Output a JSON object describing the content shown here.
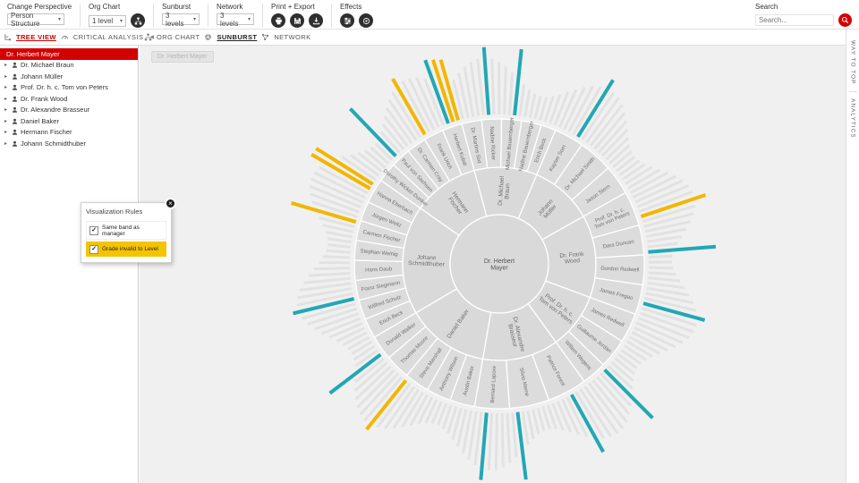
{
  "toolbar": {
    "perspective": {
      "label": "Change Perspective",
      "value": "Person Structure"
    },
    "org_chart": {
      "label": "Org Chart",
      "value": "1 level"
    },
    "sunburst": {
      "label": "Sunburst",
      "value": "3 levels"
    },
    "network": {
      "label": "Network",
      "value": "3 levels"
    },
    "print_export": {
      "label": "Print + Export"
    },
    "effects": {
      "label": "Effects"
    },
    "search": {
      "label": "Search",
      "placeholder": "Search..."
    }
  },
  "tabs": {
    "tree_view": "TREE VIEW",
    "critical_analysis": "CRITICAL ANALYSIS",
    "org_chart": "ORG CHART",
    "sunburst": "SUNBURST",
    "network": "NETWORK"
  },
  "tree": {
    "selected": "Dr. Herbert Mayer",
    "items": [
      "Dr. Michael Braun",
      "Johann Müller",
      "Prof. Dr. h. c. Tom von Peters",
      "Dr. Frank Wood",
      "Dr. Alexandre Brasseur",
      "Daniel Baker",
      "Hermann Fischer",
      "Johann Schmidthuber"
    ]
  },
  "main": {
    "root_button": "Dr. Herbert Mayer"
  },
  "rules_panel": {
    "title": "Visualization Rules",
    "options": [
      {
        "label": "Same band as manager",
        "checked": true,
        "highlighted": false
      },
      {
        "label": "Grade invalid to Level",
        "checked": true,
        "highlighted": true
      }
    ]
  },
  "side_strip": {
    "top": "WAY TO TOP",
    "bottom": "ANALYTICS"
  },
  "chart_data": {
    "type": "sunburst",
    "center": "Dr. Herbert Mayer",
    "start_angle": -105,
    "legend": "inner ring = direct reports, middle ring = their reports, outer spokes = individual employees; colored spokes mark rule matches",
    "palette": {
      "ring": "#d9d9d9",
      "ring2": "#dcdcdc",
      "leaf": "#e2e2e2",
      "teal": "#22a7b5",
      "yellow": "#f2b600",
      "label": "#6f6f6f",
      "center_label": "#555555",
      "stroke": "#ffffff"
    },
    "children": [
      {
        "name": "Dr. Michael Braun",
        "children": [
          {
            "name": "Dr. Martins Sixt",
            "leaves": 4
          },
          {
            "name": "Nadine Ricker",
            "leaves": 4
          },
          {
            "name": "Michael Bauernberger",
            "leaves": 4
          },
          {
            "name": "Nadine Bauernberger",
            "leaves": 4
          },
          {
            "name": "Erich Beck",
            "leaves": 3
          }
        ]
      },
      {
        "name": "Johann Müller",
        "children": [
          {
            "name": "Kayser Som",
            "leaves": 6
          },
          {
            "name": "Dr. Michael Smith",
            "leaves": 7
          },
          {
            "name": "Jason Stern",
            "leaves": 6
          }
        ]
      },
      {
        "name": "Dr. Frank Wood",
        "children": [
          {
            "name": "Prof. Dr. h. c. Tom von Peters",
            "leaves": 7
          },
          {
            "name": "Dara Duncan",
            "leaves": 6
          },
          {
            "name": "Gordon Redwell",
            "leaves": 6
          },
          {
            "name": "James Fregao",
            "leaves": 6
          }
        ]
      },
      {
        "name": "Prof. Dr. h. c. Tom von Peters",
        "children": [
          {
            "name": "James Redwell",
            "leaves": 6
          },
          {
            "name": "Guillaume Jordan",
            "leaves": 6
          },
          {
            "name": "Willem Wegens",
            "leaves": 5
          }
        ]
      },
      {
        "name": "Dr. Alexandre Brasseur",
        "children": [
          {
            "name": "Patrice Forest",
            "leaves": 8
          },
          {
            "name": "Silvio Meine",
            "leaves": 8
          },
          {
            "name": "Bernard Lapore",
            "leaves": 7
          }
        ]
      },
      {
        "name": "Daniel Baker",
        "children": [
          {
            "name": "Austin Baker",
            "leaves": 5
          },
          {
            "name": "Anthony Wilson",
            "leaves": 5
          },
          {
            "name": "Steve Marshall",
            "leaves": 5
          },
          {
            "name": "Thomas Moore",
            "leaves": 5
          },
          {
            "name": "Donald Walker",
            "leaves": 5
          }
        ]
      },
      {
        "name": "Johann Schmidthuber",
        "children": [
          {
            "name": "Erich Beck",
            "leaves": 4
          },
          {
            "name": "Wilfred Schulz",
            "leaves": 4
          },
          {
            "name": "Franz Siegmann",
            "leaves": 4
          },
          {
            "name": "Hans Daub",
            "leaves": 4
          },
          {
            "name": "Stephan Weinig",
            "leaves": 4
          },
          {
            "name": "Carmen Fischer",
            "leaves": 4
          },
          {
            "name": "Jürgen Weitz",
            "leaves": 4
          },
          {
            "name": "Hanna Eberbach",
            "leaves": 5
          }
        ]
      },
      {
        "name": "Hermann Fischer",
        "children": [
          {
            "name": "Dorothy Wicker-Dunker",
            "leaves": 4
          },
          {
            "name": "Paul von Sachsen",
            "leaves": 4
          },
          {
            "name": "Dr. Carmen Cray",
            "leaves": 4
          },
          {
            "name": "Frank Urich",
            "leaves": 4
          },
          {
            "name": "Herbert Kubat",
            "leaves": 4
          }
        ]
      }
    ],
    "highlight_leaves": [
      {
        "index": 5,
        "color": "teal"
      },
      {
        "index": 10,
        "color": "teal"
      },
      {
        "index": 23,
        "color": "teal"
      },
      {
        "index": 43,
        "color": "yellow"
      },
      {
        "index": 50,
        "color": "teal"
      },
      {
        "index": 60,
        "color": "teal"
      },
      {
        "index": 75,
        "color": "teal"
      },
      {
        "index": 83,
        "color": "teal"
      },
      {
        "index": 94,
        "color": "teal"
      },
      {
        "index": 100,
        "color": "teal"
      },
      {
        "index": 117,
        "color": "yellow"
      },
      {
        "index": 124,
        "color": "teal"
      },
      {
        "index": 136,
        "color": "teal"
      },
      {
        "index": 151,
        "color": "yellow"
      },
      {
        "index": 158,
        "color": "yellow"
      },
      {
        "index": 159,
        "color": "yellow"
      },
      {
        "index": 166,
        "color": "teal"
      },
      {
        "index": 173,
        "color": "yellow"
      },
      {
        "index": 178,
        "color": "teal"
      },
      {
        "index": 179,
        "color": "yellow"
      },
      {
        "index": 180,
        "color": "yellow"
      }
    ]
  }
}
